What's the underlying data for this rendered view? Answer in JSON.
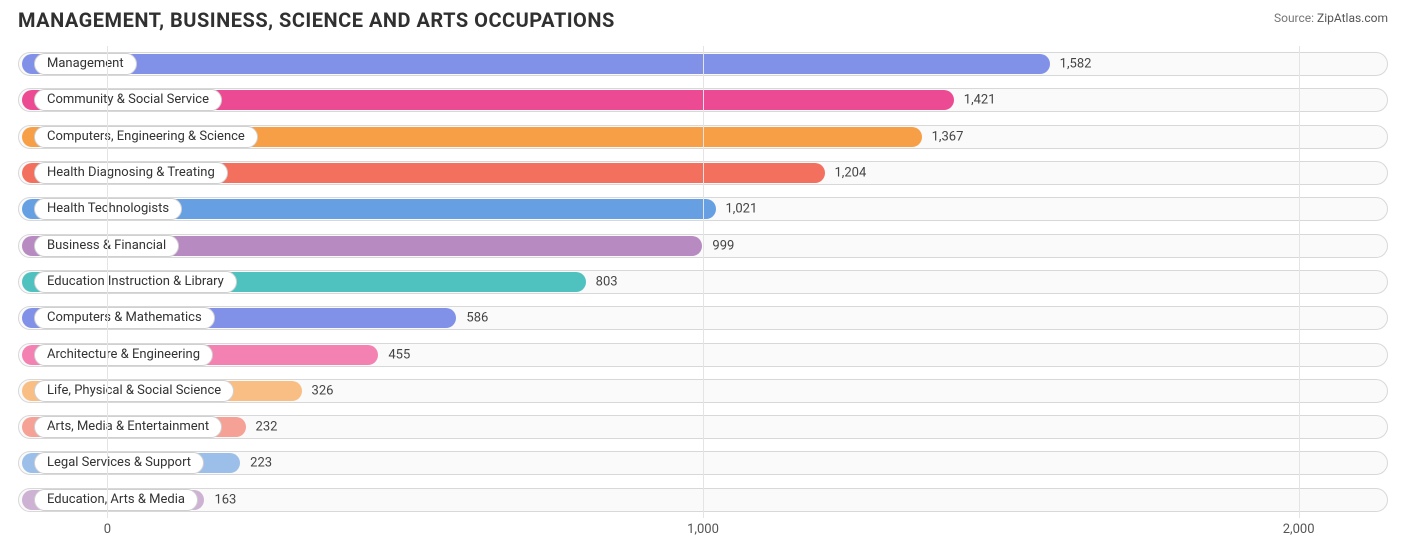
{
  "title": "MANAGEMENT, BUSINESS, SCIENCE AND ARTS OCCUPATIONS",
  "source_label": "Source:",
  "source_value": "ZipAtlas.com",
  "chart": {
    "type": "bar-horizontal",
    "xmin": -150,
    "xmax": 2150,
    "x_ticks": [
      {
        "value": 0,
        "label": "0"
      },
      {
        "value": 1000,
        "label": "1,000"
      },
      {
        "value": 2000,
        "label": "2,000"
      }
    ],
    "track_border_color": "#d8d8d8",
    "track_bg_color": "#fafafa",
    "grid_color": "#e4e4e4",
    "label_color": "#444444",
    "bars": [
      {
        "label": "Management",
        "value": 1582,
        "value_text": "1,582",
        "color": "#8191e8"
      },
      {
        "label": "Community & Social Service",
        "value": 1421,
        "value_text": "1,421",
        "color": "#ec4a93"
      },
      {
        "label": "Computers, Engineering & Science",
        "value": 1367,
        "value_text": "1,367",
        "color": "#f79f46"
      },
      {
        "label": "Health Diagnosing & Treating",
        "value": 1204,
        "value_text": "1,204",
        "color": "#f2705d"
      },
      {
        "label": "Health Technologists",
        "value": 1021,
        "value_text": "1,021",
        "color": "#67a0e2"
      },
      {
        "label": "Business & Financial",
        "value": 999,
        "value_text": "999",
        "color": "#b78bc1"
      },
      {
        "label": "Education Instruction & Library",
        "value": 803,
        "value_text": "803",
        "color": "#4fc2bf"
      },
      {
        "label": "Computers & Mathematics",
        "value": 586,
        "value_text": "586",
        "color": "#8191e8"
      },
      {
        "label": "Architecture & Engineering",
        "value": 455,
        "value_text": "455",
        "color": "#f382b3"
      },
      {
        "label": "Life, Physical & Social Science",
        "value": 326,
        "value_text": "326",
        "color": "#f9be84"
      },
      {
        "label": "Arts, Media & Entertainment",
        "value": 232,
        "value_text": "232",
        "color": "#f5a196"
      },
      {
        "label": "Legal Services & Support",
        "value": 223,
        "value_text": "223",
        "color": "#9bbfe9"
      },
      {
        "label": "Education, Arts & Media",
        "value": 163,
        "value_text": "163",
        "color": "#cdb2d4"
      }
    ]
  }
}
